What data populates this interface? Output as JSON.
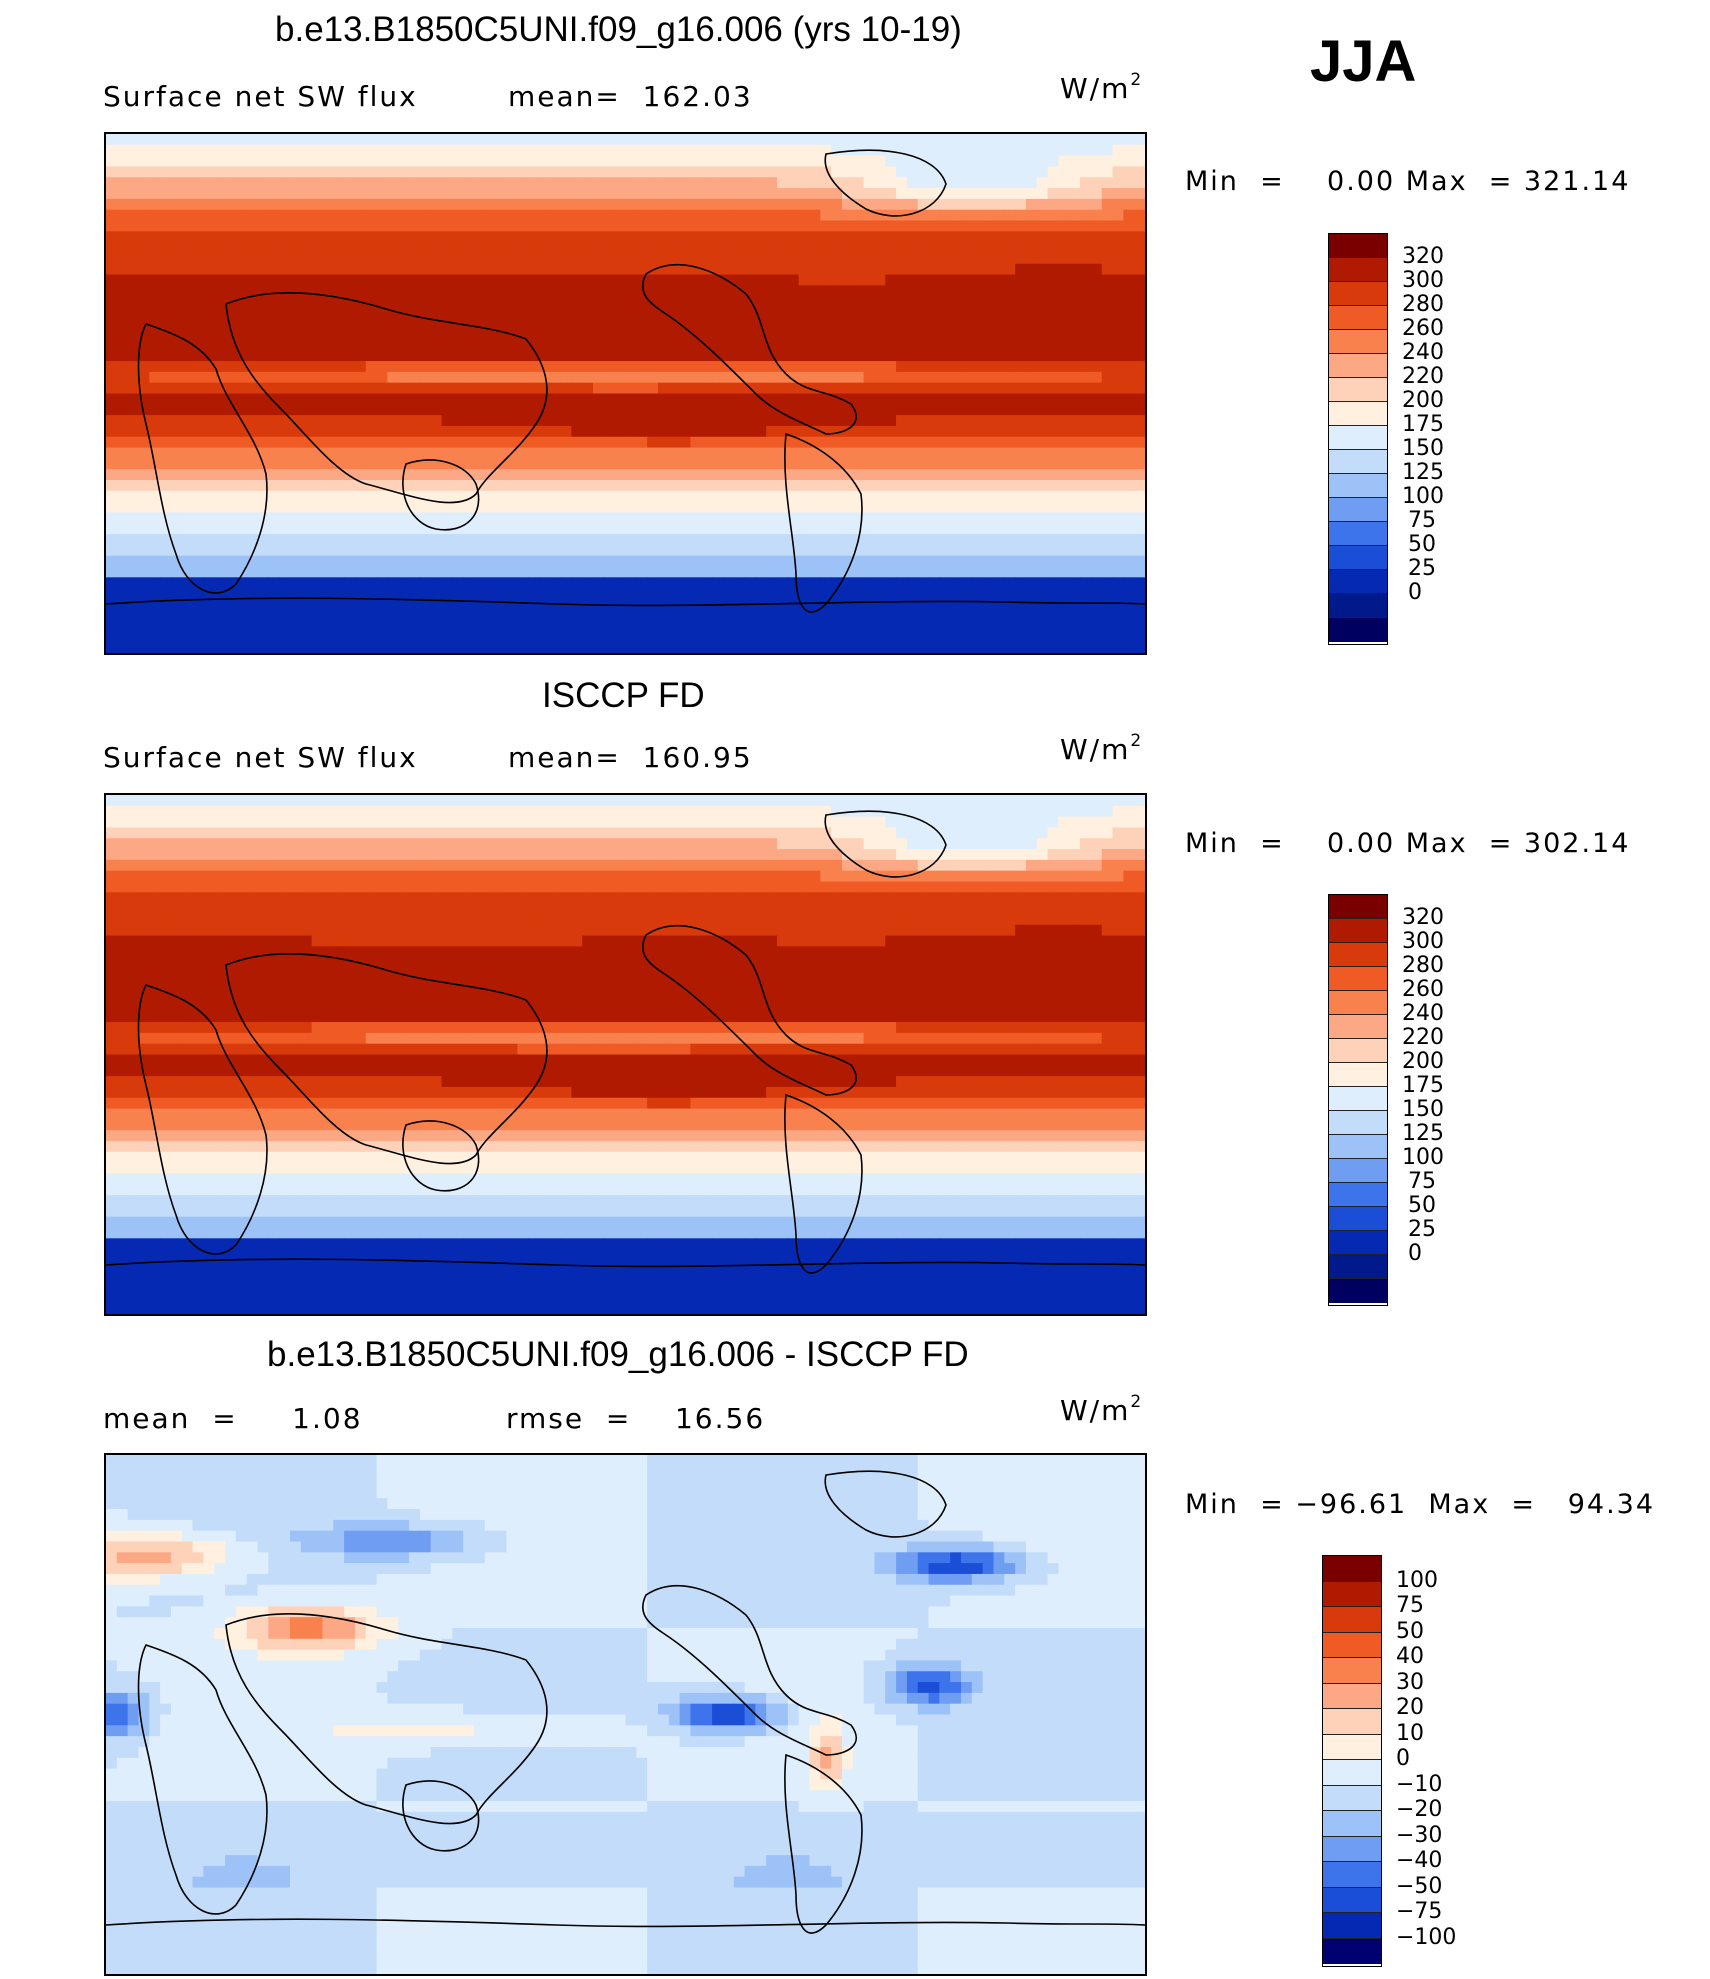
{
  "season": "JJA",
  "units_label": "W/m",
  "units_exponent": "2",
  "panels": [
    {
      "title": "b.e13.B1850C5UNI.f09_g16.006 (yrs 10-19)",
      "left_label": "Surface net SW flux",
      "stat_label": "mean=  162.03",
      "minmax": "Min  =    0.00 Max  = 321.14",
      "colorbar_labels": [
        "320",
        "300",
        "280",
        "260",
        "240",
        "220",
        "200",
        "175",
        "150",
        "125",
        "100",
        "75",
        "50",
        "25",
        "0"
      ],
      "field": {
        "kind": "model",
        "mean": 162.03,
        "min": 0.0,
        "max": 321.14
      }
    },
    {
      "title": "ISCCP FD",
      "left_label": "Surface net SW flux",
      "stat_label": "mean=  160.95",
      "minmax": "Min  =    0.00 Max  = 302.14",
      "colorbar_labels": [
        "320",
        "300",
        "280",
        "260",
        "240",
        "220",
        "200",
        "175",
        "150",
        "125",
        "100",
        "75",
        "50",
        "25",
        "0"
      ],
      "field": {
        "kind": "obs",
        "mean": 160.95,
        "min": 0.0,
        "max": 302.14
      }
    },
    {
      "title": "b.e13.B1850C5UNI.f09_g16.006 - ISCCP FD",
      "left_label": "mean  =     1.08",
      "stat_label": "rmse  =    16.56",
      "minmax": "Min  = −96.61  Max  =   94.34",
      "colorbar_labels": [
        "100",
        "75",
        "50",
        "40",
        "30",
        "20",
        "10",
        "0",
        "−10",
        "−20",
        "−30",
        "−40",
        "−50",
        "−75",
        "−100"
      ],
      "field": {
        "kind": "diff",
        "mean": 1.08,
        "rmse": 16.56,
        "min": -96.61,
        "max": 94.34
      }
    }
  ],
  "colors": {
    "abs_levels": [
      "#7a0000",
      "#b01a00",
      "#d93a0b",
      "#f05a25",
      "#f9814e",
      "#fca884",
      "#fdd2b8",
      "#fff0e0",
      "#dfeefc",
      "#c2dcfa",
      "#9dc2f7",
      "#6f9df2",
      "#3e74eb",
      "#1b4ed7",
      "#0629b3",
      "#001a8c",
      "#000060"
    ],
    "diff_levels": [
      "#7a0000",
      "#b01a00",
      "#d93a0b",
      "#f05a25",
      "#f9814e",
      "#fca884",
      "#fdd2b8",
      "#fff0e0",
      "#dfeefc",
      "#c2dcfa",
      "#9dc2f7",
      "#6f9df2",
      "#3e74eb",
      "#1b4ed7",
      "#0629b3",
      "#000070"
    ],
    "coastline": "#000000"
  }
}
